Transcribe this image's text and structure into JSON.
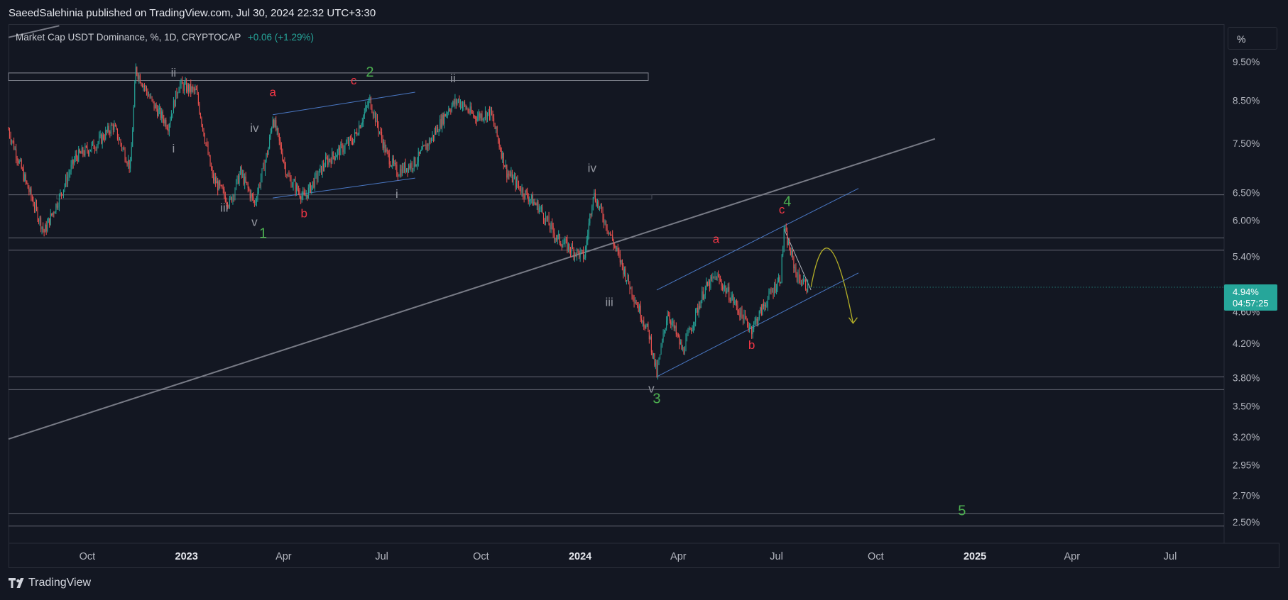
{
  "header": {
    "published": "SaeedSalehinia published on TradingView.com, Jul 30, 2024 22:32 UTC+3:30"
  },
  "legend": {
    "symbol": "Market Cap USDT Dominance, %, 1D, CRYPTOCAP",
    "change": "+0.06 (+1.29%)"
  },
  "scale_button": "%",
  "price_tag": {
    "price": "4.94%",
    "countdown": "04:57:25"
  },
  "footer": {
    "brand": "TradingView"
  },
  "colors": {
    "background": "#131722",
    "up_candle": "#26a69a",
    "down_candle": "#ef5350",
    "wave_red": "#f23645",
    "wave_green": "#4caf50",
    "wave_gray": "#9598a1",
    "channel_blue": "#4a78c4",
    "projection_yellow": "#b5b027"
  },
  "chart_data": {
    "type": "candlestick",
    "title": "Market Cap USDT Dominance, %, 1D, CRYPTOCAP",
    "y_scale": "log",
    "ylim": [
      2.35,
      10.6
    ],
    "y_ticks": [
      "9.50%",
      "8.50%",
      "7.50%",
      "6.50%",
      "6.00%",
      "5.40%",
      "4.60%",
      "4.20%",
      "3.80%",
      "3.50%",
      "3.20%",
      "2.95%",
      "2.70%",
      "2.50%"
    ],
    "x_ticks": [
      "Oct",
      "2023",
      "Apr",
      "Jul",
      "Oct",
      "2024",
      "Apr",
      "Jul",
      "Oct",
      "2025",
      "Apr",
      "Jul"
    ],
    "bold_x_ticks": [
      "2023",
      "2024",
      "2025"
    ],
    "last_price": 4.94,
    "price_path": [
      [
        "2022-07-20",
        7.8
      ],
      [
        "2022-08-05",
        6.7
      ],
      [
        "2022-08-22",
        5.8
      ],
      [
        "2022-09-05",
        6.4
      ],
      [
        "2022-09-20",
        7.2
      ],
      [
        "2022-10-10",
        7.5
      ],
      [
        "2022-10-25",
        7.9
      ],
      [
        "2022-11-10",
        7.0
      ],
      [
        "2022-11-15",
        9.3
      ],
      [
        "2022-12-01",
        8.4
      ],
      [
        "2022-12-15",
        7.9
      ],
      [
        "2022-12-25",
        8.9
      ],
      [
        "2023-01-10",
        8.7
      ],
      [
        "2023-01-25",
        6.8
      ],
      [
        "2023-02-10",
        6.3
      ],
      [
        "2023-02-20",
        6.9
      ],
      [
        "2023-03-05",
        6.3
      ],
      [
        "2023-03-18",
        7.4
      ],
      [
        "2023-03-22",
        8.1
      ],
      [
        "2023-04-05",
        6.8
      ],
      [
        "2023-04-20",
        6.4
      ],
      [
        "2023-05-10",
        7.1
      ],
      [
        "2023-06-05",
        7.6
      ],
      [
        "2023-06-20",
        8.5
      ],
      [
        "2023-07-05",
        7.3
      ],
      [
        "2023-07-15",
        6.9
      ],
      [
        "2023-08-01",
        7.1
      ],
      [
        "2023-08-16",
        7.6
      ],
      [
        "2023-09-01",
        8.3
      ],
      [
        "2023-09-10",
        8.5
      ],
      [
        "2023-09-25",
        8.1
      ],
      [
        "2023-10-10",
        8.2
      ],
      [
        "2023-10-25",
        6.9
      ],
      [
        "2023-11-10",
        6.5
      ],
      [
        "2023-11-25",
        6.2
      ],
      [
        "2023-12-10",
        5.7
      ],
      [
        "2023-12-25",
        5.5
      ],
      [
        "2024-01-05",
        5.4
      ],
      [
        "2024-01-13",
        6.5
      ],
      [
        "2024-01-28",
        5.8
      ],
      [
        "2024-02-15",
        5.0
      ],
      [
        "2024-03-05",
        4.3
      ],
      [
        "2024-03-12",
        3.84
      ],
      [
        "2024-03-22",
        4.6
      ],
      [
        "2024-04-05",
        4.1
      ],
      [
        "2024-04-25",
        4.9
      ],
      [
        "2024-05-06",
        5.1
      ],
      [
        "2024-05-20",
        4.8
      ],
      [
        "2024-06-01",
        4.5
      ],
      [
        "2024-06-08",
        4.38
      ],
      [
        "2024-06-20",
        4.7
      ],
      [
        "2024-07-05",
        5.1
      ],
      [
        "2024-07-08",
        5.85
      ],
      [
        "2024-07-20",
        5.1
      ],
      [
        "2024-07-30",
        4.94
      ]
    ],
    "horizontal_lines": [
      9.2,
      6.46,
      5.7,
      5.5,
      3.81,
      3.67,
      2.56,
      2.47
    ],
    "wave_labels": [
      {
        "text": "ii",
        "date": "2022-12-20",
        "price": 9.1,
        "color": "gray"
      },
      {
        "text": "i",
        "date": "2022-12-20",
        "price": 7.3,
        "color": "gray"
      },
      {
        "text": "iii",
        "date": "2023-02-05",
        "price": 6.15,
        "color": "gray"
      },
      {
        "text": "iv",
        "date": "2023-03-05",
        "price": 7.75,
        "color": "gray"
      },
      {
        "text": "v",
        "date": "2023-03-05",
        "price": 5.9,
        "color": "gray"
      },
      {
        "text": "1",
        "date": "2023-03-13",
        "price": 5.7,
        "color": "green"
      },
      {
        "text": "a",
        "date": "2023-03-22",
        "price": 8.6,
        "color": "red"
      },
      {
        "text": "b",
        "date": "2023-04-20",
        "price": 6.05,
        "color": "red"
      },
      {
        "text": "c",
        "date": "2023-06-05",
        "price": 8.9,
        "color": "red"
      },
      {
        "text": "2",
        "date": "2023-06-20",
        "price": 9.1,
        "color": "green"
      },
      {
        "text": "i",
        "date": "2023-07-15",
        "price": 6.4,
        "color": "gray"
      },
      {
        "text": "ii",
        "date": "2023-09-05",
        "price": 8.95,
        "color": "gray"
      },
      {
        "text": "iv",
        "date": "2024-01-12",
        "price": 6.9,
        "color": "gray"
      },
      {
        "text": "iii",
        "date": "2024-01-28",
        "price": 4.68,
        "color": "gray"
      },
      {
        "text": "v",
        "date": "2024-03-07",
        "price": 3.64,
        "color": "gray"
      },
      {
        "text": "3",
        "date": "2024-03-12",
        "price": 3.53,
        "color": "green"
      },
      {
        "text": "a",
        "date": "2024-05-06",
        "price": 5.62,
        "color": "red"
      },
      {
        "text": "b",
        "date": "2024-06-08",
        "price": 4.13,
        "color": "red"
      },
      {
        "text": "c",
        "date": "2024-07-06",
        "price": 6.12,
        "color": "red"
      },
      {
        "text": "4",
        "date": "2024-07-11",
        "price": 6.25,
        "color": "green"
      },
      {
        "text": "5",
        "date": "2024-12-20",
        "price": 2.55,
        "color": "green"
      }
    ],
    "trend_lines": [
      {
        "from": [
          "2022-07-20",
          10.2
        ],
        "to": [
          "2022-09-05",
          10.55
        ],
        "color": "gray"
      },
      {
        "from": [
          "2022-07-20",
          3.18
        ],
        "to": [
          "2024-11-25",
          7.6
        ],
        "color": "gray"
      },
      {
        "from": [
          "2023-03-22",
          8.15
        ],
        "to": [
          "2023-08-01",
          8.7
        ],
        "color": "blue"
      },
      {
        "from": [
          "2023-03-22",
          6.4
        ],
        "to": [
          "2023-08-01",
          6.78
        ],
        "color": "blue"
      },
      {
        "from": [
          "2024-03-12",
          4.9
        ],
        "to": [
          "2024-09-15",
          6.58
        ],
        "color": "blue"
      },
      {
        "from": [
          "2024-03-12",
          3.81
        ],
        "to": [
          "2024-09-15",
          5.15
        ],
        "color": "blue"
      },
      {
        "from": [
          "2024-07-08",
          5.85
        ],
        "to": [
          "2024-08-02",
          4.9
        ],
        "color": "white"
      }
    ],
    "projection": [
      [
        "2024-08-02",
        4.94
      ],
      [
        "2024-08-18",
        5.45
      ],
      [
        "2024-09-10",
        4.45
      ]
    ]
  }
}
